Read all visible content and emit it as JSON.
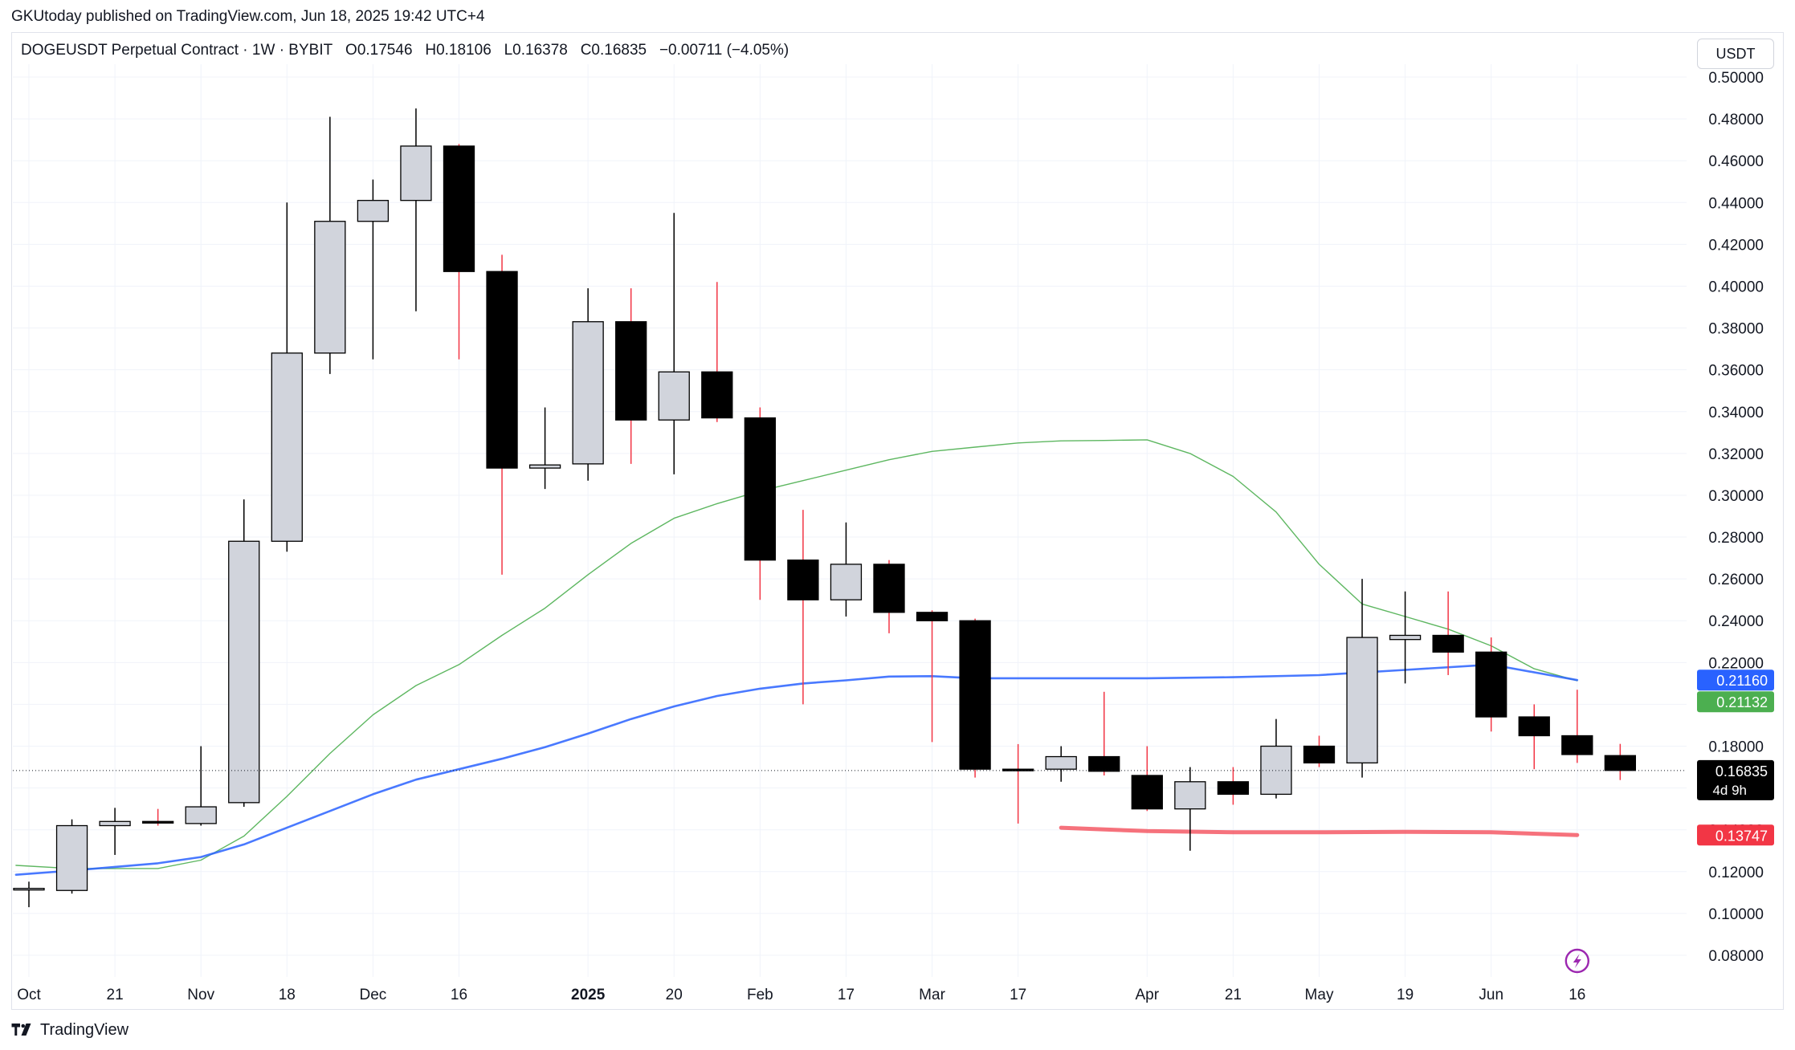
{
  "header": {
    "published": "GKUtoday published on TradingView.com, Jun 18, 2025 19:42 UTC+4"
  },
  "legend": {
    "symbol": "DOGEUSDT Perpetual Contract · 1W · BYBIT",
    "open": "O0.17546",
    "high": "H0.18106",
    "low": "L0.16378",
    "close": "C0.16835",
    "change": "−0.00711 (−4.05%)"
  },
  "currency_button": "USDT",
  "footer": {
    "brand": "TradingView"
  },
  "colors": {
    "up": "#d1d4dc",
    "down": "#000000",
    "wick_up": "#000000",
    "wick_down": "#f23645",
    "ma_blue": "#2962ff",
    "ma_green": "#4caf50",
    "support_red": "#f23645",
    "grid": "#f0f3fa"
  },
  "chart_data": {
    "type": "candlestick",
    "title": "DOGEUSDT Perpetual Contract · 1W · BYBIT",
    "ylim": [
      0.07,
      0.505
    ],
    "y_ticks": [
      "0.50000",
      "0.48000",
      "0.46000",
      "0.44000",
      "0.42000",
      "0.40000",
      "0.38000",
      "0.36000",
      "0.34000",
      "0.32000",
      "0.30000",
      "0.28000",
      "0.26000",
      "0.24000",
      "0.22000",
      "0.20000",
      "0.18000",
      "0.16000",
      "0.14000",
      "0.12000",
      "0.10000",
      "0.08000"
    ],
    "x_labels": [
      {
        "i": 0,
        "label": "Oct"
      },
      {
        "i": 2,
        "label": "21"
      },
      {
        "i": 4,
        "label": "Nov"
      },
      {
        "i": 6,
        "label": "18"
      },
      {
        "i": 8,
        "label": "Dec"
      },
      {
        "i": 10,
        "label": "16"
      },
      {
        "i": 13,
        "label": "2025",
        "bold": true
      },
      {
        "i": 15,
        "label": "20"
      },
      {
        "i": 17,
        "label": "Feb"
      },
      {
        "i": 19,
        "label": "17"
      },
      {
        "i": 21,
        "label": "Mar"
      },
      {
        "i": 23,
        "label": "17"
      },
      {
        "i": 26,
        "label": "Apr"
      },
      {
        "i": 28,
        "label": "21"
      },
      {
        "i": 30,
        "label": "May"
      },
      {
        "i": 32,
        "label": "19"
      },
      {
        "i": 34,
        "label": "Jun"
      },
      {
        "i": 36,
        "label": "16"
      }
    ],
    "candles": [
      {
        "o": 0.1115,
        "h": 0.1152,
        "l": 0.103,
        "c": 0.112
      },
      {
        "o": 0.111,
        "h": 0.145,
        "l": 0.1095,
        "c": 0.142
      },
      {
        "o": 0.142,
        "h": 0.1505,
        "l": 0.128,
        "c": 0.144
      },
      {
        "o": 0.144,
        "h": 0.15,
        "l": 0.142,
        "c": 0.1435
      },
      {
        "o": 0.143,
        "h": 0.18,
        "l": 0.142,
        "c": 0.151
      },
      {
        "o": 0.153,
        "h": 0.298,
        "l": 0.151,
        "c": 0.278
      },
      {
        "o": 0.278,
        "h": 0.44,
        "l": 0.273,
        "c": 0.368
      },
      {
        "o": 0.368,
        "h": 0.481,
        "l": 0.358,
        "c": 0.431
      },
      {
        "o": 0.431,
        "h": 0.451,
        "l": 0.365,
        "c": 0.441
      },
      {
        "o": 0.441,
        "h": 0.485,
        "l": 0.388,
        "c": 0.467
      },
      {
        "o": 0.467,
        "h": 0.468,
        "l": 0.365,
        "c": 0.407
      },
      {
        "o": 0.407,
        "h": 0.415,
        "l": 0.262,
        "c": 0.313
      },
      {
        "o": 0.313,
        "h": 0.342,
        "l": 0.303,
        "c": 0.3145
      },
      {
        "o": 0.315,
        "h": 0.399,
        "l": 0.307,
        "c": 0.383
      },
      {
        "o": 0.383,
        "h": 0.399,
        "l": 0.315,
        "c": 0.336
      },
      {
        "o": 0.336,
        "h": 0.435,
        "l": 0.31,
        "c": 0.359
      },
      {
        "o": 0.359,
        "h": 0.402,
        "l": 0.335,
        "c": 0.337
      },
      {
        "o": 0.337,
        "h": 0.342,
        "l": 0.25,
        "c": 0.269
      },
      {
        "o": 0.269,
        "h": 0.293,
        "l": 0.2,
        "c": 0.25
      },
      {
        "o": 0.25,
        "h": 0.287,
        "l": 0.242,
        "c": 0.267
      },
      {
        "o": 0.267,
        "h": 0.269,
        "l": 0.234,
        "c": 0.244
      },
      {
        "o": 0.244,
        "h": 0.245,
        "l": 0.182,
        "c": 0.24
      },
      {
        "o": 0.24,
        "h": 0.241,
        "l": 0.165,
        "c": 0.169
      },
      {
        "o": 0.169,
        "h": 0.181,
        "l": 0.143,
        "c": 0.1688
      },
      {
        "o": 0.169,
        "h": 0.18,
        "l": 0.163,
        "c": 0.175
      },
      {
        "o": 0.175,
        "h": 0.206,
        "l": 0.166,
        "c": 0.168
      },
      {
        "o": 0.166,
        "h": 0.18,
        "l": 0.149,
        "c": 0.15
      },
      {
        "o": 0.15,
        "h": 0.17,
        "l": 0.13,
        "c": 0.163
      },
      {
        "o": 0.163,
        "h": 0.17,
        "l": 0.152,
        "c": 0.157
      },
      {
        "o": 0.157,
        "h": 0.193,
        "l": 0.155,
        "c": 0.18
      },
      {
        "o": 0.18,
        "h": 0.185,
        "l": 0.17,
        "c": 0.172
      },
      {
        "o": 0.172,
        "h": 0.26,
        "l": 0.165,
        "c": 0.232
      },
      {
        "o": 0.231,
        "h": 0.254,
        "l": 0.21,
        "c": 0.233
      },
      {
        "o": 0.233,
        "h": 0.254,
        "l": 0.214,
        "c": 0.225
      },
      {
        "o": 0.225,
        "h": 0.232,
        "l": 0.187,
        "c": 0.194
      },
      {
        "o": 0.194,
        "h": 0.2,
        "l": 0.169,
        "c": 0.185
      },
      {
        "o": 0.185,
        "h": 0.207,
        "l": 0.172,
        "c": 0.176
      },
      {
        "o": 0.1755,
        "h": 0.1811,
        "l": 0.1638,
        "c": 0.1684
      }
    ],
    "ma_blue": [
      {
        "i": -0.3,
        "v": 0.1185
      },
      {
        "i": 1,
        "v": 0.1205
      },
      {
        "i": 3,
        "v": 0.124
      },
      {
        "i": 4,
        "v": 0.127
      },
      {
        "i": 5,
        "v": 0.133
      },
      {
        "i": 6,
        "v": 0.141
      },
      {
        "i": 7,
        "v": 0.149
      },
      {
        "i": 8,
        "v": 0.157
      },
      {
        "i": 9,
        "v": 0.164
      },
      {
        "i": 10,
        "v": 0.169
      },
      {
        "i": 11,
        "v": 0.174
      },
      {
        "i": 12,
        "v": 0.1795
      },
      {
        "i": 13,
        "v": 0.186
      },
      {
        "i": 14,
        "v": 0.193
      },
      {
        "i": 15,
        "v": 0.199
      },
      {
        "i": 16,
        "v": 0.204
      },
      {
        "i": 17,
        "v": 0.2075
      },
      {
        "i": 18,
        "v": 0.21
      },
      {
        "i": 19,
        "v": 0.2115
      },
      {
        "i": 20,
        "v": 0.2133
      },
      {
        "i": 21,
        "v": 0.2135
      },
      {
        "i": 22,
        "v": 0.2125
      },
      {
        "i": 24,
        "v": 0.2125
      },
      {
        "i": 26,
        "v": 0.2125
      },
      {
        "i": 28,
        "v": 0.213
      },
      {
        "i": 30,
        "v": 0.214
      },
      {
        "i": 32,
        "v": 0.2165
      },
      {
        "i": 34,
        "v": 0.219
      },
      {
        "i": 36,
        "v": 0.2116
      }
    ],
    "ma_green": [
      {
        "i": -0.3,
        "v": 0.123
      },
      {
        "i": 1,
        "v": 0.1215
      },
      {
        "i": 3,
        "v": 0.1215
      },
      {
        "i": 4,
        "v": 0.1255
      },
      {
        "i": 5,
        "v": 0.137
      },
      {
        "i": 6,
        "v": 0.156
      },
      {
        "i": 7,
        "v": 0.1765
      },
      {
        "i": 8,
        "v": 0.195
      },
      {
        "i": 9,
        "v": 0.209
      },
      {
        "i": 10,
        "v": 0.219
      },
      {
        "i": 11,
        "v": 0.233
      },
      {
        "i": 12,
        "v": 0.246
      },
      {
        "i": 13,
        "v": 0.262
      },
      {
        "i": 14,
        "v": 0.277
      },
      {
        "i": 15,
        "v": 0.289
      },
      {
        "i": 16,
        "v": 0.296
      },
      {
        "i": 17,
        "v": 0.302
      },
      {
        "i": 18,
        "v": 0.307
      },
      {
        "i": 19,
        "v": 0.312
      },
      {
        "i": 20,
        "v": 0.317
      },
      {
        "i": 21,
        "v": 0.321
      },
      {
        "i": 22,
        "v": 0.323
      },
      {
        "i": 23,
        "v": 0.325
      },
      {
        "i": 24,
        "v": 0.326
      },
      {
        "i": 25,
        "v": 0.3262
      },
      {
        "i": 26,
        "v": 0.3265
      },
      {
        "i": 27,
        "v": 0.32
      },
      {
        "i": 28,
        "v": 0.309
      },
      {
        "i": 29,
        "v": 0.292
      },
      {
        "i": 30,
        "v": 0.267
      },
      {
        "i": 31,
        "v": 0.248
      },
      {
        "i": 32,
        "v": 0.242
      },
      {
        "i": 33,
        "v": 0.236
      },
      {
        "i": 34,
        "v": 0.228
      },
      {
        "i": 35,
        "v": 0.217
      },
      {
        "i": 36,
        "v": 0.2113
      }
    ],
    "support_red": [
      {
        "i": 24,
        "v": 0.141
      },
      {
        "i": 26,
        "v": 0.1394
      },
      {
        "i": 28,
        "v": 0.1388
      },
      {
        "i": 30,
        "v": 0.1388
      },
      {
        "i": 32,
        "v": 0.139
      },
      {
        "i": 34,
        "v": 0.1388
      },
      {
        "i": 36,
        "v": 0.1375
      }
    ],
    "price_labels": {
      "ma_blue": "0.21160",
      "ma_green": "0.21132",
      "last": "0.16835",
      "countdown": "4d 9h",
      "support": "0.13747"
    }
  }
}
